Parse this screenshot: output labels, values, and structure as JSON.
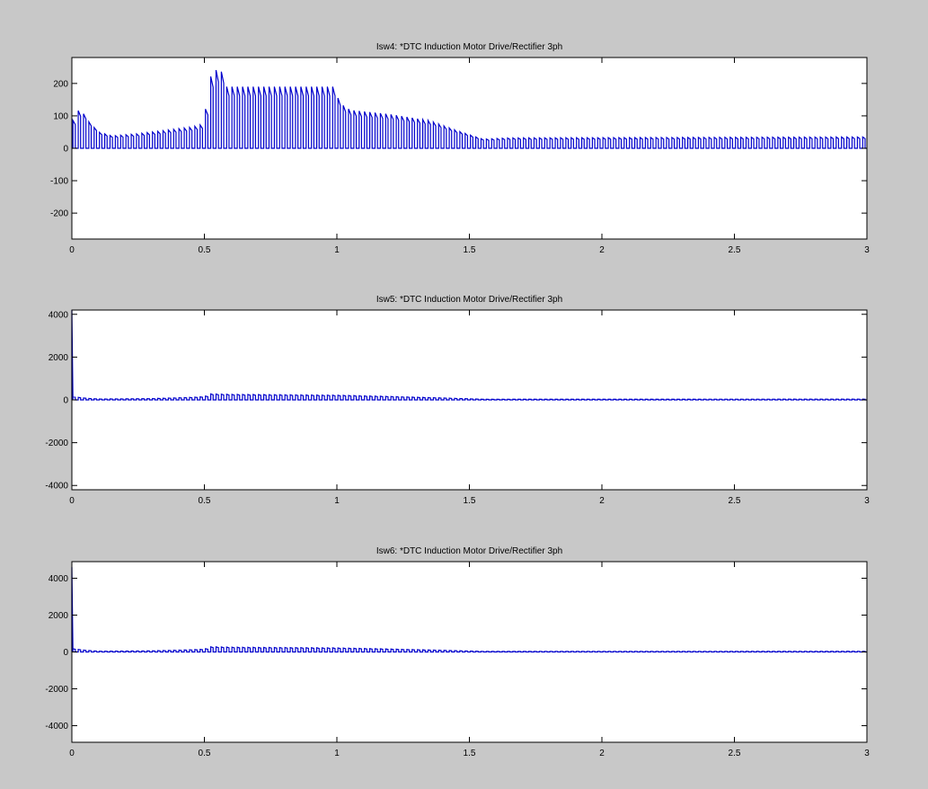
{
  "figure": {
    "background_color": "#c8c8c8",
    "axes_color": "#ffffff",
    "line_color": "#0000cc"
  },
  "chart_data": [
    {
      "type": "line",
      "title": "Isw4: *DTC Induction Motor Drive/Rectifier 3ph",
      "xlim": [
        0,
        3
      ],
      "ylim": [
        -280,
        280
      ],
      "xticks": [
        0,
        0.5,
        1,
        1.5,
        2,
        2.5,
        3
      ],
      "xtick_labels": [
        "0",
        "0.5",
        "1",
        "1.5",
        "2",
        "2.5",
        "3"
      ],
      "yticks": [
        200,
        100,
        0,
        -100,
        -200
      ],
      "ytick_labels": [
        "200",
        "100",
        "0",
        "-100",
        "-200"
      ],
      "pulse_period": 0.02,
      "envelope": [
        {
          "x": 0.0,
          "y": 80
        },
        {
          "x": 0.03,
          "y": 125
        },
        {
          "x": 0.06,
          "y": 85
        },
        {
          "x": 0.1,
          "y": 50
        },
        {
          "x": 0.15,
          "y": 38
        },
        {
          "x": 0.25,
          "y": 45
        },
        {
          "x": 0.35,
          "y": 55
        },
        {
          "x": 0.45,
          "y": 65
        },
        {
          "x": 0.5,
          "y": 75
        },
        {
          "x": 0.51,
          "y": 190
        },
        {
          "x": 0.53,
          "y": 235
        },
        {
          "x": 0.56,
          "y": 248
        },
        {
          "x": 0.58,
          "y": 190
        },
        {
          "x": 0.99,
          "y": 190
        },
        {
          "x": 1.01,
          "y": 140
        },
        {
          "x": 1.05,
          "y": 118
        },
        {
          "x": 1.2,
          "y": 105
        },
        {
          "x": 1.35,
          "y": 85
        },
        {
          "x": 1.45,
          "y": 55
        },
        {
          "x": 1.55,
          "y": 28
        },
        {
          "x": 1.65,
          "y": 32
        },
        {
          "x": 3.0,
          "y": 35
        }
      ]
    },
    {
      "type": "line",
      "title": "Isw5: *DTC Induction Motor Drive/Rectifier 3ph",
      "xlim": [
        0,
        3
      ],
      "ylim": [
        -4200,
        4200
      ],
      "xticks": [
        0,
        0.5,
        1,
        1.5,
        2,
        2.5,
        3
      ],
      "xtick_labels": [
        "0",
        "0.5",
        "1",
        "1.5",
        "2",
        "2.5",
        "3"
      ],
      "yticks": [
        4000,
        2000,
        0,
        -2000,
        -4000
      ],
      "ytick_labels": [
        "4000",
        "2000",
        "0",
        "-2000",
        "-4000"
      ],
      "initial_spike": 4200,
      "pulse_period": 0.02,
      "envelope": [
        {
          "x": 0.0,
          "y": 150
        },
        {
          "x": 0.05,
          "y": 80
        },
        {
          "x": 0.1,
          "y": 40
        },
        {
          "x": 0.3,
          "y": 60
        },
        {
          "x": 0.45,
          "y": 120
        },
        {
          "x": 0.5,
          "y": 150
        },
        {
          "x": 0.52,
          "y": 280
        },
        {
          "x": 0.6,
          "y": 260
        },
        {
          "x": 1.0,
          "y": 220
        },
        {
          "x": 1.2,
          "y": 160
        },
        {
          "x": 1.4,
          "y": 90
        },
        {
          "x": 1.55,
          "y": 30
        },
        {
          "x": 3.0,
          "y": 35
        }
      ]
    },
    {
      "type": "line",
      "title": "Isw6: *DTC Induction Motor Drive/Rectifier 3ph",
      "xlim": [
        0,
        3
      ],
      "ylim": [
        -4900,
        4900
      ],
      "xticks": [
        0,
        0.5,
        1,
        1.5,
        2,
        2.5,
        3
      ],
      "xtick_labels": [
        "0",
        "0.5",
        "1",
        "1.5",
        "2",
        "2.5",
        "3"
      ],
      "yticks": [
        4000,
        2000,
        0,
        -2000,
        -4000
      ],
      "ytick_labels": [
        "4000",
        "2000",
        "0",
        "-2000",
        "-4000"
      ],
      "initial_spike": 4600,
      "pulse_period": 0.02,
      "envelope": [
        {
          "x": 0.0,
          "y": 180
        },
        {
          "x": 0.05,
          "y": 90
        },
        {
          "x": 0.1,
          "y": 40
        },
        {
          "x": 0.3,
          "y": 60
        },
        {
          "x": 0.45,
          "y": 120
        },
        {
          "x": 0.5,
          "y": 150
        },
        {
          "x": 0.52,
          "y": 280
        },
        {
          "x": 0.6,
          "y": 260
        },
        {
          "x": 1.0,
          "y": 220
        },
        {
          "x": 1.2,
          "y": 160
        },
        {
          "x": 1.4,
          "y": 90
        },
        {
          "x": 1.55,
          "y": 30
        },
        {
          "x": 3.0,
          "y": 35
        }
      ]
    }
  ]
}
